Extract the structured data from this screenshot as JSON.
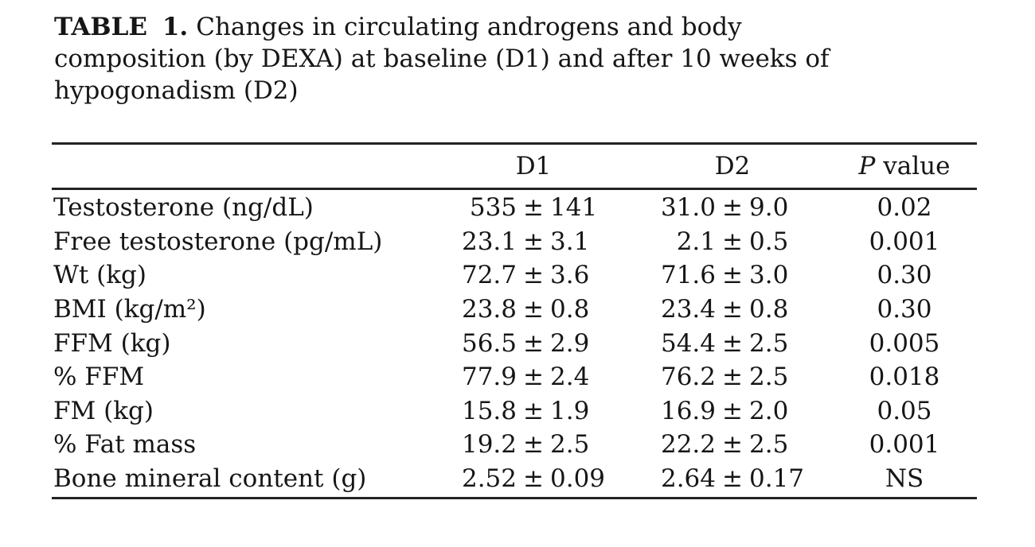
{
  "caption": {
    "label": "TABLE 1.",
    "lines": [
      "Changes in circulating androgens and body",
      "composition (by DEXA) at baseline (D1) and after 10 weeks of",
      "hypogonadism (D2)"
    ]
  },
  "table": {
    "pm": "±",
    "header": {
      "d1": "D1",
      "d2": "D2",
      "p_italic": "P",
      "p_rest": " value"
    },
    "rows": [
      {
        "label": "Testosterone (ng/dL)",
        "d1_mean": "535",
        "d1_sd": "141",
        "d2_mean": "31.0",
        "d2_sd": "9.0",
        "p": "0.02"
      },
      {
        "label": "Free testosterone (pg/mL)",
        "d1_mean": "23.1",
        "d1_sd": "3.1",
        "d2_mean": "2.1",
        "d2_sd": "0.5",
        "p": "0.001"
      },
      {
        "label": "Wt (kg)",
        "d1_mean": "72.7",
        "d1_sd": "3.6",
        "d2_mean": "71.6",
        "d2_sd": "3.0",
        "p": "0.30"
      },
      {
        "label": "BMI (kg/m²)",
        "d1_mean": "23.8",
        "d1_sd": "0.8",
        "d2_mean": "23.4",
        "d2_sd": "0.8",
        "p": "0.30"
      },
      {
        "label": "FFM (kg)",
        "d1_mean": "56.5",
        "d1_sd": "2.9",
        "d2_mean": "54.4",
        "d2_sd": "2.5",
        "p": "0.005"
      },
      {
        "label": "% FFM",
        "d1_mean": "77.9",
        "d1_sd": "2.4",
        "d2_mean": "76.2",
        "d2_sd": "2.5",
        "p": "0.018"
      },
      {
        "label": "FM (kg)",
        "d1_mean": "15.8",
        "d1_sd": "1.9",
        "d2_mean": "16.9",
        "d2_sd": "2.0",
        "p": "0.05"
      },
      {
        "label": "% Fat mass",
        "d1_mean": "19.2",
        "d1_sd": "2.5",
        "d2_mean": "22.2",
        "d2_sd": "2.5",
        "p": "0.001"
      },
      {
        "label": "Bone mineral content (g)",
        "d1_mean": "2.52",
        "d1_sd": "0.09",
        "d2_mean": "2.64",
        "d2_sd": "0.17",
        "p": "NS"
      }
    ]
  },
  "colors": {
    "background": "#ffffff",
    "text": "#161616",
    "rule": "#232323"
  }
}
